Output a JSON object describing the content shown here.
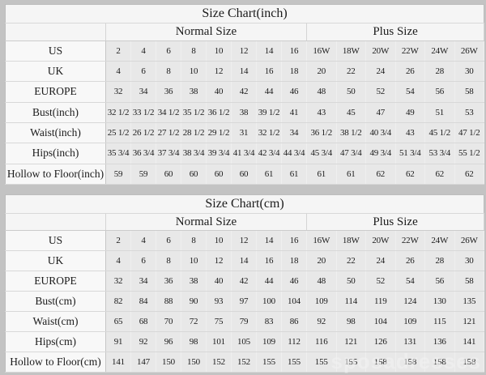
{
  "watermark": "sposadresses",
  "colors": {
    "page_background": "#c3c3c3",
    "header_background": "#f5f5f5",
    "label_background": "#f8f8f8",
    "cell_background": "#e8e8e8",
    "text": "#1b1b1b"
  },
  "chart_data": [
    {
      "type": "table",
      "title": "Size Chart(inch)",
      "group_headers": {
        "normal": "Normal Size",
        "plus": "Plus Size"
      },
      "rows": [
        {
          "label": "US",
          "normal": [
            "2",
            "4",
            "6",
            "8",
            "10",
            "12",
            "14",
            "16"
          ],
          "plus": [
            "16W",
            "18W",
            "20W",
            "22W",
            "24W",
            "26W"
          ]
        },
        {
          "label": "UK",
          "normal": [
            "4",
            "6",
            "8",
            "10",
            "12",
            "14",
            "16",
            "18"
          ],
          "plus": [
            "20",
            "22",
            "24",
            "26",
            "28",
            "30"
          ]
        },
        {
          "label": "EUROPE",
          "normal": [
            "32",
            "34",
            "36",
            "38",
            "40",
            "42",
            "44",
            "46"
          ],
          "plus": [
            "48",
            "50",
            "52",
            "54",
            "56",
            "58"
          ]
        },
        {
          "label": "Bust(inch)",
          "normal": [
            "32 1/2",
            "33 1/2",
            "34 1/2",
            "35 1/2",
            "36 1/2",
            "38",
            "39 1/2",
            "41"
          ],
          "plus": [
            "43",
            "45",
            "47",
            "49",
            "51",
            "53"
          ]
        },
        {
          "label": "Waist(inch)",
          "normal": [
            "25 1/2",
            "26 1/2",
            "27 1/2",
            "28 1/2",
            "29 1/2",
            "31",
            "32 1/2",
            "34"
          ],
          "plus": [
            "36 1/2",
            "38 1/2",
            "40 3/4",
            "43",
            "45 1/2",
            "47 1/2"
          ]
        },
        {
          "label": "Hips(inch)",
          "normal": [
            "35 3/4",
            "36 3/4",
            "37 3/4",
            "38 3/4",
            "39 3/4",
            "41 3/4",
            "42 3/4",
            "44 3/4"
          ],
          "plus": [
            "45 3/4",
            "47 3/4",
            "49 3/4",
            "51 3/4",
            "53 3/4",
            "55 1/2"
          ]
        },
        {
          "label": "Hollow to Floor(inch)",
          "normal": [
            "59",
            "59",
            "60",
            "60",
            "60",
            "60",
            "61",
            "61"
          ],
          "plus": [
            "61",
            "61",
            "62",
            "62",
            "62",
            "62"
          ]
        }
      ]
    },
    {
      "type": "table",
      "title": "Size Chart(cm)",
      "group_headers": {
        "normal": "Normal Size",
        "plus": "Plus Size"
      },
      "rows": [
        {
          "label": "US",
          "normal": [
            "2",
            "4",
            "6",
            "8",
            "10",
            "12",
            "14",
            "16"
          ],
          "plus": [
            "16W",
            "18W",
            "20W",
            "22W",
            "24W",
            "26W"
          ]
        },
        {
          "label": "UK",
          "normal": [
            "4",
            "6",
            "8",
            "10",
            "12",
            "14",
            "16",
            "18"
          ],
          "plus": [
            "20",
            "22",
            "24",
            "26",
            "28",
            "30"
          ]
        },
        {
          "label": "EUROPE",
          "normal": [
            "32",
            "34",
            "36",
            "38",
            "40",
            "42",
            "44",
            "46"
          ],
          "plus": [
            "48",
            "50",
            "52",
            "54",
            "56",
            "58"
          ]
        },
        {
          "label": "Bust(cm)",
          "normal": [
            "82",
            "84",
            "88",
            "90",
            "93",
            "97",
            "100",
            "104"
          ],
          "plus": [
            "109",
            "114",
            "119",
            "124",
            "130",
            "135"
          ]
        },
        {
          "label": "Waist(cm)",
          "normal": [
            "65",
            "68",
            "70",
            "72",
            "75",
            "79",
            "83",
            "86"
          ],
          "plus": [
            "92",
            "98",
            "104",
            "109",
            "115",
            "121"
          ]
        },
        {
          "label": "Hips(cm)",
          "normal": [
            "91",
            "92",
            "96",
            "98",
            "101",
            "105",
            "109",
            "112"
          ],
          "plus": [
            "116",
            "121",
            "126",
            "131",
            "136",
            "141"
          ]
        },
        {
          "label": "Hollow to Floor(cm)",
          "normal": [
            "141",
            "147",
            "150",
            "150",
            "152",
            "152",
            "155",
            "155"
          ],
          "plus": [
            "155",
            "155",
            "158",
            "158",
            "158",
            "158"
          ]
        }
      ]
    }
  ]
}
